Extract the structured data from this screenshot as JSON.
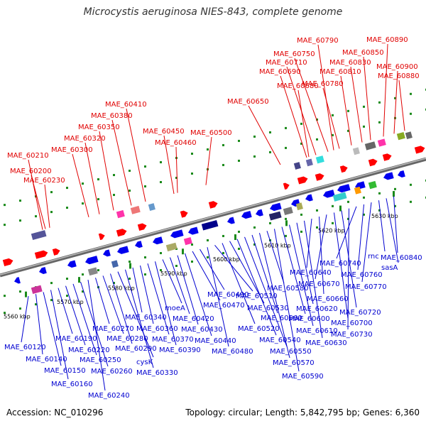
{
  "title": "Microcystis aeruginosa NIES-843, complete genome",
  "footer": {
    "accession": "Accession: NC_010296",
    "summary": "Topology: circular; Length: 5,842,795 bp; Genes: 6,360"
  },
  "colors": {
    "top_label": "#e00000",
    "bottom_label": "#0000d0",
    "axis": "#888888",
    "tick": "#1a8a1a"
  },
  "ticks": [
    "5560 kbp",
    "5570 kbp",
    "5580 kbp",
    "5590 kbp",
    "5600 kbp",
    "5610 kbp",
    "5620 kbp",
    "5630 kbp"
  ],
  "top_labels": [
    "MAE_60210",
    "MAE_60200",
    "MAE_60230",
    "MAE_60300",
    "MAE_60320",
    "MAE_60350",
    "MAE_60380",
    "MAE_60410",
    "MAE_60450",
    "MAE_60460",
    "MAE_60500",
    "MAE_60650",
    "MAE_60680",
    "MAE_60690",
    "MAE_60710",
    "MAE_60750",
    "MAE_60790",
    "MAE_60780",
    "MAE_60810",
    "MAE_60830",
    "MAE_60850",
    "MAE_60890",
    "MAE_60900",
    "MAE_60880"
  ],
  "bottom_labels": [
    "MAE_60120",
    "MAE_60140",
    "MAE_60150",
    "MAE_60160",
    "MAE_60190",
    "MAE_60220",
    "MAE_60250",
    "MAE_60260",
    "MAE_60240",
    "MAE_60270",
    "MAE_60280",
    "MAE_60290",
    "cysK",
    "MAE_60330",
    "MAE_60340",
    "MAE_60360",
    "MAE_60370",
    "MAE_60390",
    "moeA",
    "MAE_60420",
    "MAE_60430",
    "MAE_60440",
    "MAE_60470",
    "MAE_60490",
    "MAE_60480",
    "MAE_60510",
    "MAE_60520",
    "MAE_60530",
    "MAE_60540",
    "MAE_60550",
    "MAE_60560",
    "MAE_60570",
    "MAE_60580",
    "MAE_60590",
    "MAE_60600",
    "MAE_60610",
    "MAE_60620",
    "MAE_60630",
    "MAE_60640",
    "MAE_60660",
    "MAE_60670",
    "MAE_60700",
    "MAE_60720",
    "MAE_60730",
    "MAE_60740",
    "MAE_60760",
    "MAE_60770",
    "rnc",
    "sasA",
    "MAE_60840"
  ]
}
